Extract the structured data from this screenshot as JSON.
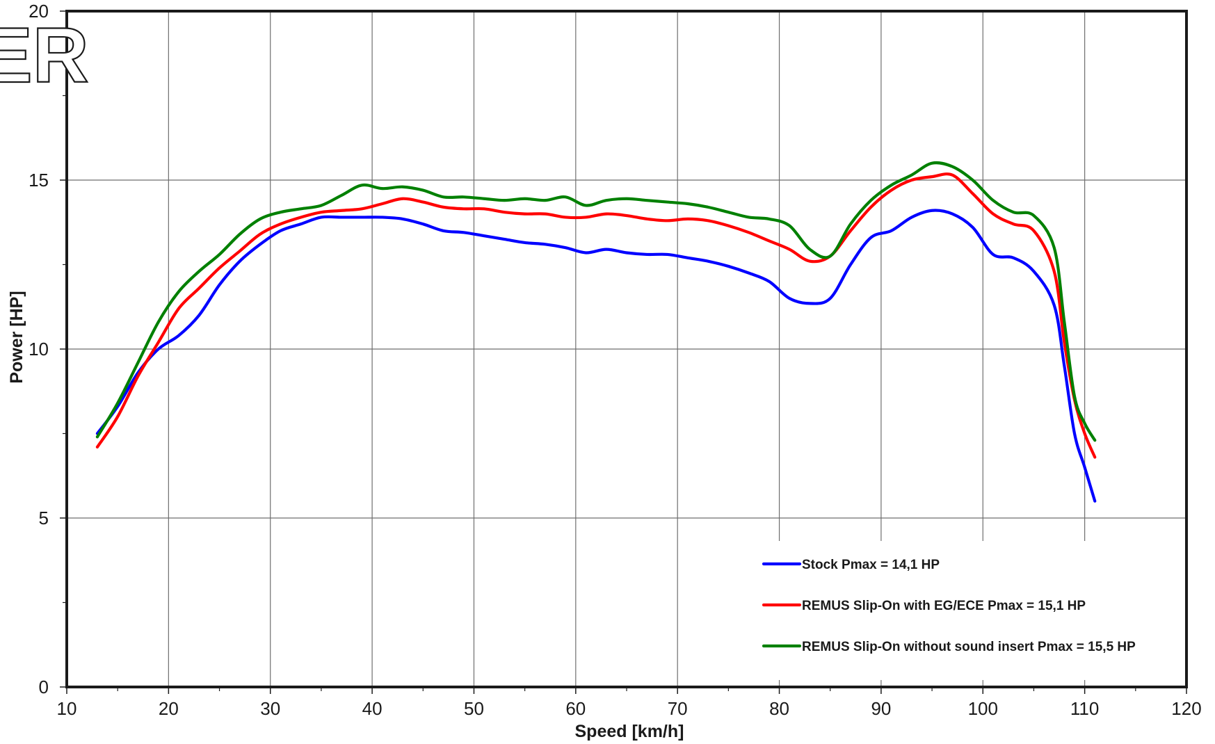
{
  "chart_data": {
    "type": "line",
    "xlabel": "Speed [km/h]",
    "ylabel": "Power [HP]",
    "xlim": [
      10,
      120
    ],
    "ylim": [
      0,
      20
    ],
    "xticks": [
      10,
      20,
      30,
      40,
      50,
      60,
      70,
      80,
      90,
      100,
      110,
      120
    ],
    "yticks": [
      0,
      5,
      10,
      15,
      20
    ],
    "grid": true,
    "legend_position": "bottom-right",
    "series": [
      {
        "name": "Stock Pmax = 14,1 HP",
        "color": "#0000ff",
        "x": [
          13,
          15,
          17,
          19,
          21,
          23,
          25,
          27,
          29,
          31,
          33,
          35,
          37,
          39,
          41,
          43,
          45,
          47,
          49,
          51,
          53,
          55,
          57,
          59,
          61,
          63,
          65,
          67,
          69,
          71,
          73,
          75,
          77,
          79,
          81,
          83,
          85,
          87,
          89,
          91,
          93,
          95,
          97,
          99,
          101,
          103,
          105,
          107,
          108,
          109,
          110,
          111
        ],
        "y": [
          7.5,
          8.3,
          9.3,
          10.0,
          10.4,
          11.0,
          11.9,
          12.6,
          13.1,
          13.5,
          13.7,
          13.9,
          13.9,
          13.9,
          13.9,
          13.85,
          13.7,
          13.5,
          13.45,
          13.35,
          13.25,
          13.15,
          13.1,
          13.0,
          12.85,
          12.95,
          12.85,
          12.8,
          12.8,
          12.7,
          12.6,
          12.45,
          12.25,
          12.0,
          11.5,
          11.35,
          11.5,
          12.5,
          13.3,
          13.5,
          13.9,
          14.1,
          14.0,
          13.6,
          12.8,
          12.7,
          12.3,
          11.3,
          9.5,
          7.5,
          6.5,
          5.5
        ]
      },
      {
        "name": "REMUS Slip-On with EG/ECE Pmax = 15,1 HP",
        "color": "#ff0000",
        "x": [
          13,
          15,
          17,
          19,
          21,
          23,
          25,
          27,
          29,
          31,
          33,
          35,
          37,
          39,
          41,
          43,
          45,
          47,
          49,
          51,
          53,
          55,
          57,
          59,
          61,
          63,
          65,
          67,
          69,
          71,
          73,
          75,
          77,
          79,
          81,
          83,
          85,
          87,
          89,
          91,
          93,
          95,
          97,
          99,
          101,
          103,
          105,
          107,
          108,
          109,
          110,
          111
        ],
        "y": [
          7.1,
          8.0,
          9.2,
          10.2,
          11.2,
          11.8,
          12.4,
          12.9,
          13.4,
          13.7,
          13.9,
          14.05,
          14.1,
          14.15,
          14.3,
          14.45,
          14.35,
          14.2,
          14.15,
          14.15,
          14.05,
          14.0,
          14.0,
          13.9,
          13.9,
          14.0,
          13.95,
          13.85,
          13.8,
          13.85,
          13.8,
          13.65,
          13.45,
          13.2,
          12.95,
          12.6,
          12.75,
          13.5,
          14.2,
          14.7,
          15.0,
          15.1,
          15.15,
          14.6,
          14.0,
          13.7,
          13.5,
          12.3,
          10.2,
          8.5,
          7.5,
          6.8
        ]
      },
      {
        "name": "REMUS Slip-On without sound insert Pmax = 15,5 HP",
        "color": "#008000",
        "x": [
          13,
          15,
          17,
          19,
          21,
          23,
          25,
          27,
          29,
          31,
          33,
          35,
          37,
          39,
          41,
          43,
          45,
          47,
          49,
          51,
          53,
          55,
          57,
          59,
          61,
          63,
          65,
          67,
          69,
          71,
          73,
          75,
          77,
          79,
          81,
          83,
          85,
          87,
          89,
          91,
          93,
          95,
          97,
          99,
          101,
          103,
          105,
          107,
          108,
          109,
          110,
          111
        ],
        "y": [
          7.4,
          8.4,
          9.6,
          10.8,
          11.7,
          12.3,
          12.8,
          13.4,
          13.85,
          14.05,
          14.15,
          14.25,
          14.55,
          14.85,
          14.75,
          14.8,
          14.7,
          14.5,
          14.5,
          14.45,
          14.4,
          14.45,
          14.4,
          14.5,
          14.25,
          14.4,
          14.45,
          14.4,
          14.35,
          14.3,
          14.2,
          14.05,
          13.9,
          13.85,
          13.65,
          12.95,
          12.75,
          13.7,
          14.4,
          14.85,
          15.15,
          15.5,
          15.4,
          15.0,
          14.4,
          14.05,
          13.95,
          13.0,
          10.8,
          8.6,
          7.8,
          7.3
        ]
      }
    ]
  },
  "watermark_text": "ER"
}
